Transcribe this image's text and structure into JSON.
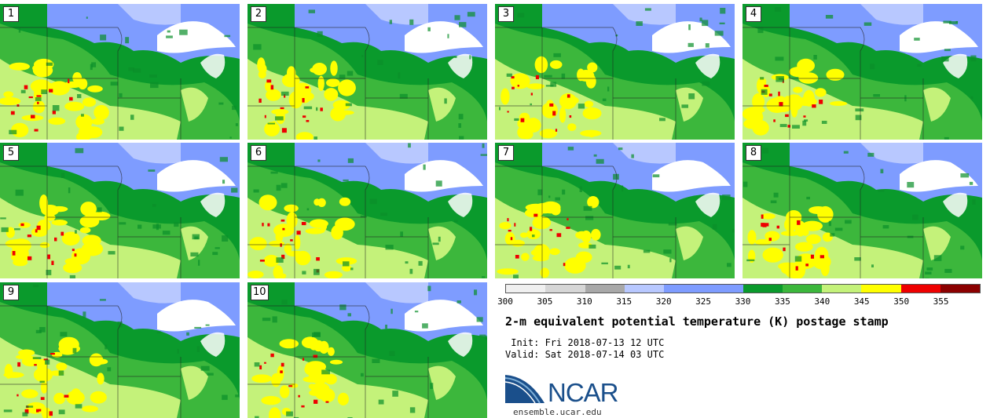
{
  "members": [
    {
      "label": "1"
    },
    {
      "label": "2"
    },
    {
      "label": "3"
    },
    {
      "label": "4"
    },
    {
      "label": "5"
    },
    {
      "label": "6"
    },
    {
      "label": "7"
    },
    {
      "label": "8"
    },
    {
      "label": "9"
    },
    {
      "label": "10"
    }
  ],
  "colorbar": {
    "colors": [
      "#f0f0f0",
      "#d6d6d6",
      "#a8a8a8",
      "#b8c8ff",
      "#7e9cff",
      "#7e9cff",
      "#0a9a2c",
      "#3cb73c",
      "#c4f27a",
      "#ffff00",
      "#ee0000",
      "#8b0000"
    ],
    "ticks": [
      "300",
      "305",
      "310",
      "315",
      "320",
      "325",
      "330",
      "335",
      "340",
      "345",
      "350",
      "355"
    ]
  },
  "title": "2-m equivalent potential temperature (K) postage stamp",
  "init": " Init: Fri 2018-07-13 12 UTC",
  "valid": "Valid: Sat 2018-07-14 03 UTC",
  "logo": {
    "text": "NCAR",
    "color": "#1a4f8b"
  },
  "site": "ensemble.ucar.edu"
}
